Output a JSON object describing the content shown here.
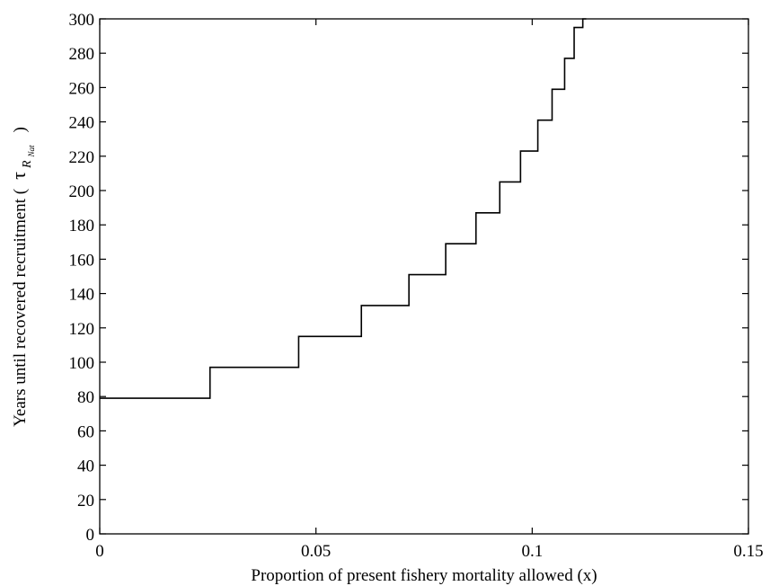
{
  "chart_data": {
    "type": "line",
    "xlabel": "Proportion of present fishery mortality allowed (x)",
    "ylabel": "Years until recovered recruitment (",
    "ylabel_symbol": "τ",
    "ylabel_subscript": "R",
    "ylabel_subsubscript": "Nat",
    "ylabel_close": ")",
    "xlim": [
      0,
      0.15
    ],
    "ylim": [
      0,
      300
    ],
    "xticks": [
      0,
      0.05,
      0.1,
      0.15
    ],
    "xtick_labels": [
      "0",
      "0.05",
      "0.1",
      "0.15"
    ],
    "yticks": [
      0,
      20,
      40,
      60,
      80,
      100,
      120,
      140,
      160,
      180,
      200,
      220,
      240,
      260,
      280,
      300
    ],
    "ytick_labels": [
      "0",
      "20",
      "40",
      "60",
      "80",
      "100",
      "120",
      "140",
      "160",
      "180",
      "200",
      "220",
      "240",
      "260",
      "280",
      "300"
    ],
    "grid": false,
    "line_color": "#000000",
    "series": [
      {
        "x": [
          0,
          0.0255,
          0.0255,
          0.046,
          0.046,
          0.0605,
          0.0605,
          0.0715,
          0.0715,
          0.08,
          0.08,
          0.087,
          0.087,
          0.0925,
          0.0925,
          0.0973,
          0.0973,
          0.1013,
          0.1013,
          0.1046,
          0.1046,
          0.1075,
          0.1075,
          0.1097,
          0.1097,
          0.1117,
          0.1117,
          0.1125
        ],
        "y": [
          79,
          79,
          97,
          97,
          115,
          115,
          133,
          133,
          151,
          151,
          169,
          169,
          187,
          187,
          205,
          205,
          223,
          223,
          241,
          241,
          259,
          259,
          277,
          277,
          295,
          295,
          300,
          300
        ]
      }
    ]
  }
}
